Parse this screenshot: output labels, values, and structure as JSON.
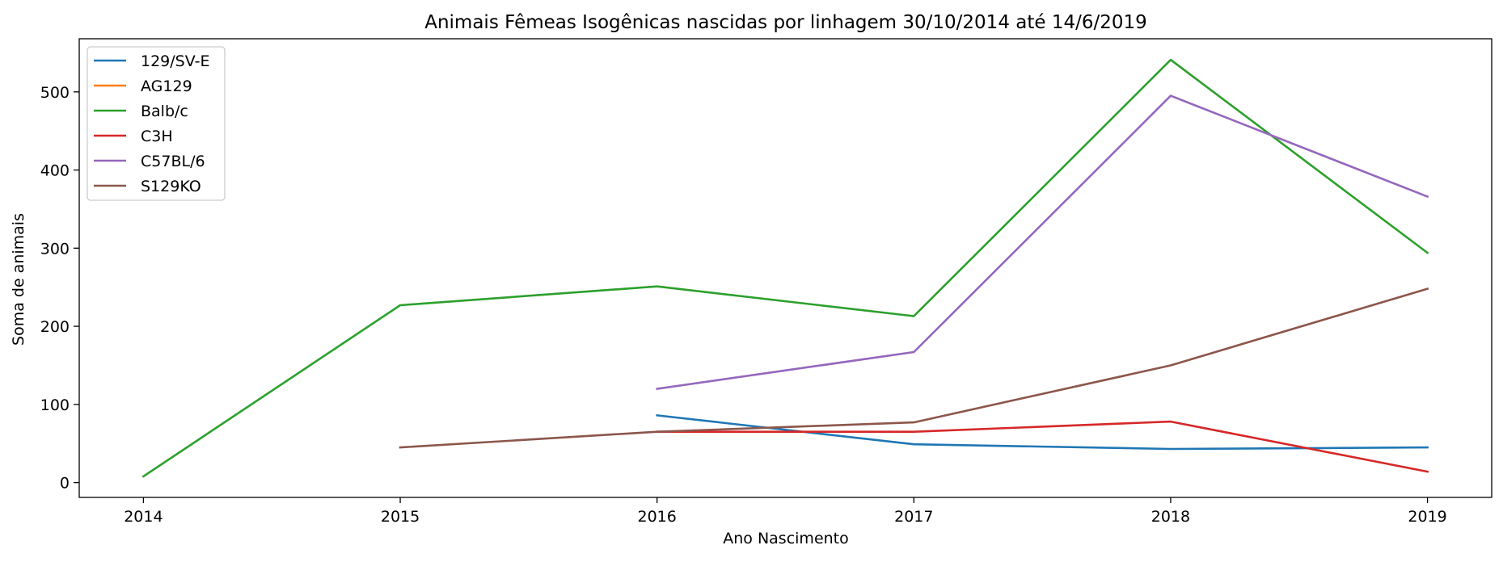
{
  "chart_data": {
    "type": "line",
    "title": "Animais Fêmeas Isogênicas nascidas por linhagem 30/10/2014 até 14/6/2019",
    "xlabel": "Ano Nascimento",
    "ylabel": "Soma de animais",
    "x": [
      2014,
      2015,
      2016,
      2017,
      2018,
      2019
    ],
    "x_ticks": [
      "2014",
      "2015",
      "2016",
      "2017",
      "2018",
      "2019"
    ],
    "y_ticks": [
      "0",
      "100",
      "200",
      "300",
      "400",
      "500"
    ],
    "xlim": [
      2013.75,
      2019.25
    ],
    "ylim": [
      -19,
      568
    ],
    "grid": false,
    "legend_position": "upper-left",
    "series": [
      {
        "name": "129/SV-E",
        "color": "#1f77b4",
        "values": [
          null,
          null,
          86,
          49,
          43,
          45
        ]
      },
      {
        "name": "AG129",
        "color": "#ff7f0e",
        "values": [
          null,
          null,
          null,
          null,
          null,
          null
        ]
      },
      {
        "name": "Balb/c",
        "color": "#2ca02c",
        "values": [
          8,
          227,
          251,
          213,
          541,
          294
        ]
      },
      {
        "name": "C3H",
        "color": "#d62728",
        "values": [
          null,
          null,
          65,
          65,
          78,
          14
        ]
      },
      {
        "name": "C57BL/6",
        "color": "#9467bd",
        "values": [
          null,
          null,
          120,
          167,
          495,
          366
        ]
      },
      {
        "name": "S129KO",
        "color": "#8c564b",
        "values": [
          null,
          45,
          65,
          77,
          150,
          248
        ]
      }
    ]
  }
}
